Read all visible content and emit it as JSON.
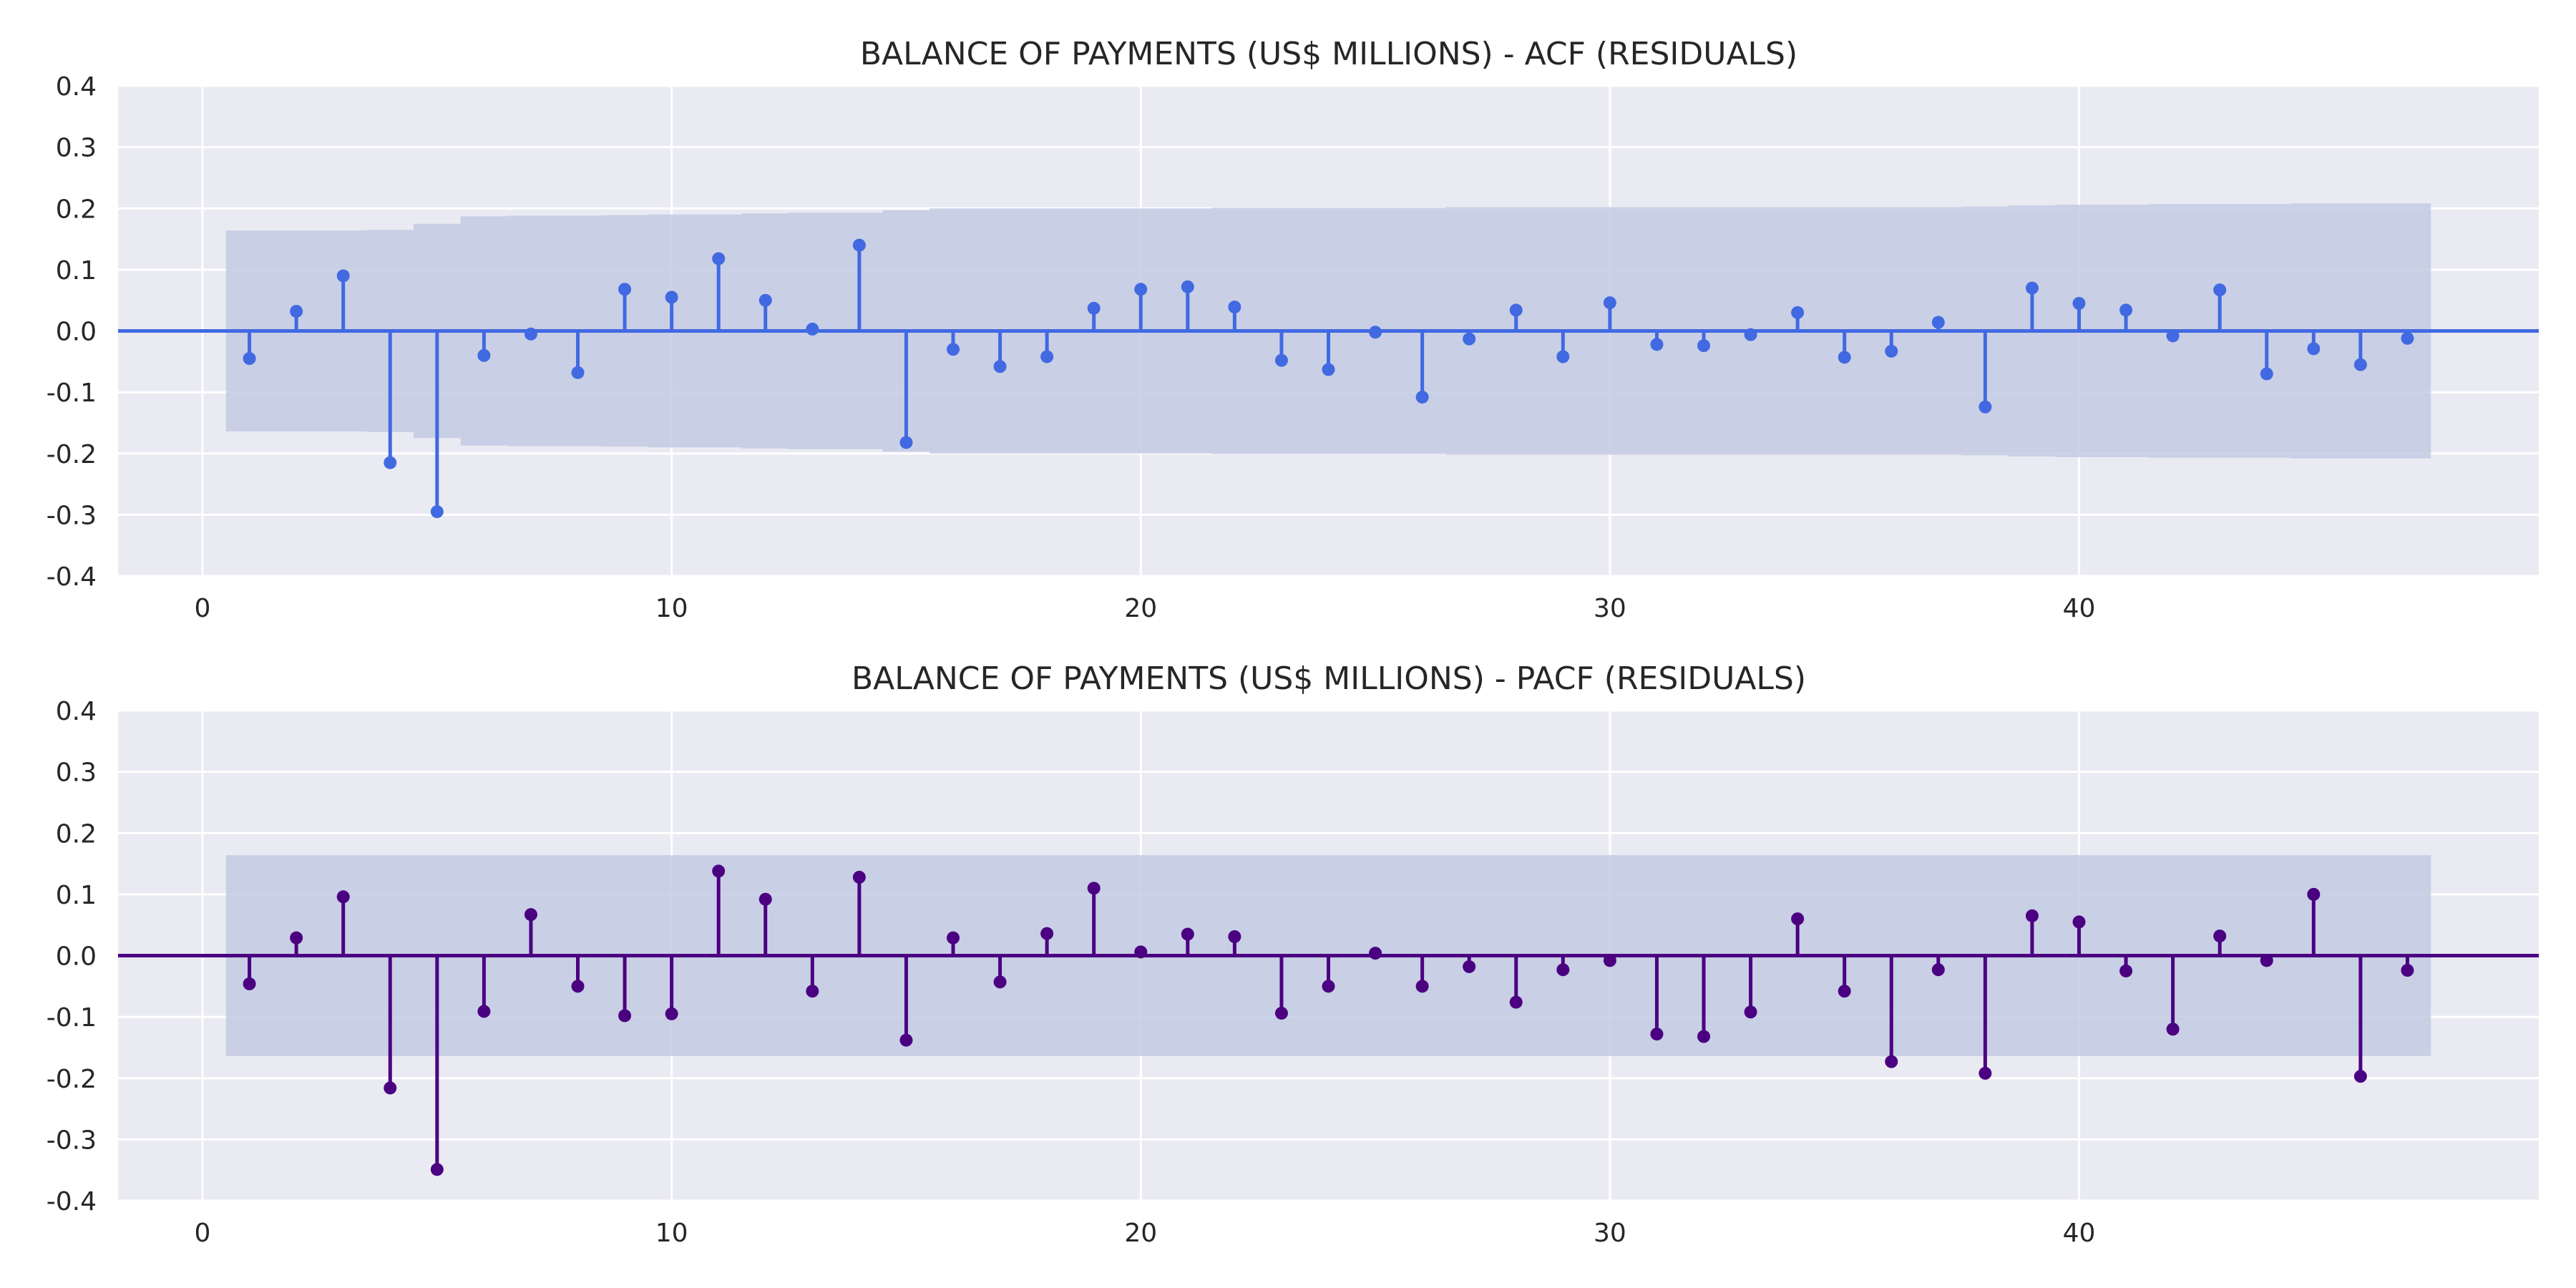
{
  "chart_data": [
    {
      "type": "stem",
      "title": "BALANCE OF PAYMENTS (US$ MILLIONS) - ACF (RESIDUALS)",
      "xlabel": "",
      "ylabel": "",
      "xlim": [
        -1.8,
        49.8
      ],
      "ylim": [
        -0.4,
        0.4
      ],
      "x_ticks": [
        "0",
        "10",
        "20",
        "30",
        "40"
      ],
      "y_ticks": [
        "0.4",
        "0.3",
        "0.2",
        "0.1",
        "0.0",
        "-0.1",
        "-0.2",
        "-0.3",
        "-0.4"
      ],
      "grid": true,
      "color": "#4169e1",
      "confidence_band_color": "#c3cae3",
      "lags": [
        1,
        2,
        3,
        4,
        5,
        6,
        7,
        8,
        9,
        10,
        11,
        12,
        13,
        14,
        15,
        16,
        17,
        18,
        19,
        20,
        21,
        22,
        23,
        24,
        25,
        26,
        27,
        28,
        29,
        30,
        31,
        32,
        33,
        34,
        35,
        36,
        37,
        38,
        39,
        40,
        41,
        42,
        43,
        44,
        45,
        46,
        47
      ],
      "values": [
        -0.045,
        0.032,
        0.09,
        -0.215,
        -0.295,
        -0.04,
        -0.005,
        -0.068,
        0.068,
        0.055,
        0.118,
        0.05,
        0.003,
        0.14,
        -0.182,
        -0.03,
        -0.058,
        -0.042,
        0.037,
        0.068,
        0.072,
        0.039,
        -0.048,
        -0.063,
        -0.002,
        -0.108,
        -0.013,
        0.034,
        -0.042,
        0.046,
        -0.022,
        -0.024,
        -0.006,
        0.03,
        -0.043,
        -0.033,
        0.014,
        -0.124,
        0.07,
        0.045,
        0.034,
        -0.008,
        0.067,
        -0.07,
        -0.029,
        -0.055,
        -0.012
      ],
      "confidence_band": [
        0.164,
        0.164,
        0.164,
        0.165,
        0.175,
        0.187,
        0.188,
        0.188,
        0.189,
        0.19,
        0.19,
        0.192,
        0.193,
        0.193,
        0.197,
        0.2,
        0.2,
        0.2,
        0.2,
        0.2,
        0.2,
        0.201,
        0.201,
        0.201,
        0.201,
        0.201,
        0.202,
        0.202,
        0.202,
        0.202,
        0.202,
        0.202,
        0.202,
        0.202,
        0.202,
        0.202,
        0.202,
        0.203,
        0.205,
        0.206,
        0.206,
        0.207,
        0.207,
        0.207,
        0.208,
        0.208,
        0.208
      ]
    },
    {
      "type": "stem",
      "title": "BALANCE OF PAYMENTS (US$ MILLIONS) - PACF (RESIDUALS)",
      "xlabel": "",
      "ylabel": "",
      "xlim": [
        -1.8,
        49.8
      ],
      "ylim": [
        -0.4,
        0.4
      ],
      "x_ticks": [
        "0",
        "10",
        "20",
        "30",
        "40"
      ],
      "y_ticks": [
        "0.4",
        "0.3",
        "0.2",
        "0.1",
        "0.0",
        "-0.1",
        "-0.2",
        "-0.3",
        "-0.4"
      ],
      "grid": true,
      "color": "#4b0082",
      "confidence_band_color": "#c3cae3",
      "lags": [
        1,
        2,
        3,
        4,
        5,
        6,
        7,
        8,
        9,
        10,
        11,
        12,
        13,
        14,
        15,
        16,
        17,
        18,
        19,
        20,
        21,
        22,
        23,
        24,
        25,
        26,
        27,
        28,
        29,
        30,
        31,
        32,
        33,
        34,
        35,
        36,
        37,
        38,
        39,
        40,
        41,
        42,
        43,
        44,
        45,
        46,
        47
      ],
      "values": [
        -0.046,
        0.029,
        0.096,
        -0.216,
        -0.349,
        -0.091,
        0.067,
        -0.05,
        -0.098,
        -0.095,
        0.138,
        0.092,
        -0.058,
        0.128,
        -0.138,
        0.029,
        -0.043,
        0.036,
        0.11,
        0.006,
        0.035,
        0.031,
        -0.094,
        -0.05,
        0.004,
        -0.05,
        -0.018,
        -0.076,
        -0.023,
        -0.008,
        -0.128,
        -0.132,
        -0.092,
        0.06,
        -0.058,
        -0.173,
        -0.023,
        -0.192,
        0.065,
        0.055,
        -0.025,
        -0.12,
        0.032,
        -0.008,
        0.1,
        -0.197,
        -0.024
      ],
      "confidence_band": [
        0.164,
        0.164,
        0.164,
        0.164,
        0.164,
        0.164,
        0.164,
        0.164,
        0.164,
        0.164,
        0.164,
        0.164,
        0.164,
        0.164,
        0.164,
        0.164,
        0.164,
        0.164,
        0.164,
        0.164,
        0.164,
        0.164,
        0.164,
        0.164,
        0.164,
        0.164,
        0.164,
        0.164,
        0.164,
        0.164,
        0.164,
        0.164,
        0.164,
        0.164,
        0.164,
        0.164,
        0.164,
        0.164,
        0.164,
        0.164,
        0.164,
        0.164,
        0.164,
        0.164,
        0.164,
        0.164,
        0.164
      ]
    }
  ]
}
